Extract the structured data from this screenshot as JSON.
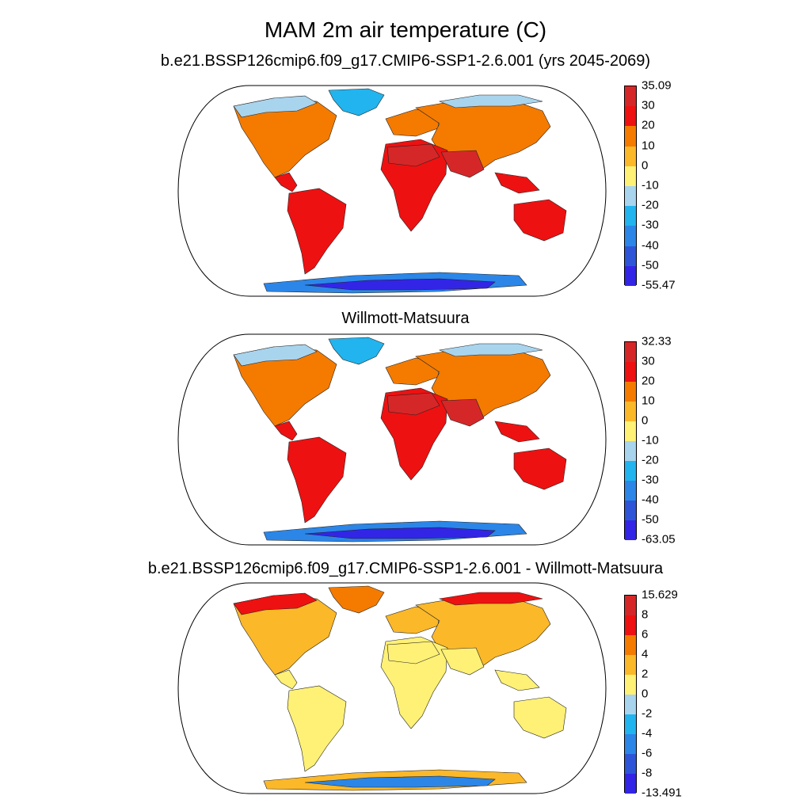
{
  "title": "MAM 2m air temperature (C)",
  "panels": [
    {
      "title": "b.e21.BSSP126cmip6.f09_g17.CMIP6-SSP1-2.6.001 (yrs 2045-2069)",
      "colorbar": {
        "labels": [
          "35.09",
          "30",
          "20",
          "10",
          "0",
          "-10",
          "-20",
          "-30",
          "-40",
          "-50",
          "-55.47"
        ],
        "colors": [
          "#d62728",
          "#ee1111",
          "#f47b00",
          "#fbb829",
          "#fff176",
          "#a9d4ee",
          "#22b4ee",
          "#2b86e8",
          "#2e55d8",
          "#3325e6"
        ]
      },
      "region_colors": {
        "arctic": "#a9d4ee",
        "greenland": "#22b4ee",
        "boreal": "#fbb829",
        "temperate": "#f47b00",
        "tropical": "#ee1111",
        "hot": "#d62728",
        "antarctica": "#2b86e8",
        "antarctica_core": "#3325e6"
      }
    },
    {
      "title": "Willmott-Matsuura",
      "colorbar": {
        "labels": [
          "32.33",
          "30",
          "20",
          "10",
          "0",
          "-10",
          "-20",
          "-30",
          "-40",
          "-50",
          "-63.05"
        ],
        "colors": [
          "#d62728",
          "#ee1111",
          "#f47b00",
          "#fbb829",
          "#fff176",
          "#a9d4ee",
          "#22b4ee",
          "#2b86e8",
          "#2e55d8",
          "#3325e6"
        ]
      },
      "region_colors": {
        "arctic": "#a9d4ee",
        "greenland": "#22b4ee",
        "boreal": "#fff176",
        "temperate": "#f47b00",
        "tropical": "#ee1111",
        "hot": "#d62728",
        "antarctica": "#2b86e8",
        "antarctica_core": "#3325e6"
      }
    },
    {
      "title": "b.e21.BSSP126cmip6.f09_g17.CMIP6-SSP1-2.6.001 - Willmott-Matsuura",
      "colorbar": {
        "labels": [
          "15.629",
          "8",
          "6",
          "4",
          "2",
          "0",
          "-2",
          "-4",
          "-6",
          "-8",
          "-13.491"
        ],
        "colors": [
          "#d62728",
          "#ee1111",
          "#f47b00",
          "#fbb829",
          "#fff176",
          "#a9d4ee",
          "#22b4ee",
          "#2b86e8",
          "#2e55d8",
          "#3325e6"
        ]
      },
      "region_colors": {
        "arctic": "#ee1111",
        "greenland": "#f47b00",
        "boreal": "#f47b00",
        "temperate": "#fbb829",
        "tropical": "#fff176",
        "hot": "#fff176",
        "antarctica": "#fbb829",
        "antarctica_core": "#2b86e8"
      }
    }
  ]
}
